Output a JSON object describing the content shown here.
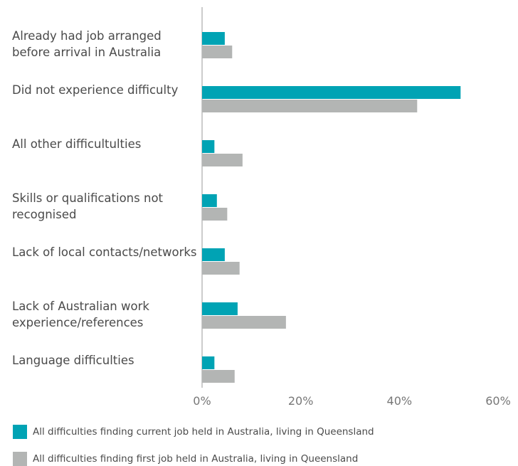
{
  "chart_data": {
    "type": "bar",
    "orientation": "horizontal",
    "categories": [
      "Already had job arranged before arrival in Australia",
      "Did not experience difficulty",
      "All other difficultulties",
      "Skills or qualifications not recognised",
      "Lack of local contacts/networks",
      "Lack of Australian work experience/references",
      "Language difficulties"
    ],
    "series": [
      {
        "name": "All difficulties finding current job held in Australia, living in Queensland",
        "color": "#00a3b4",
        "values": [
          4.6,
          52.4,
          2.5,
          3.0,
          4.6,
          7.2,
          2.5
        ]
      },
      {
        "name": "All difficulties finding first job held in Australia, living in Queensland",
        "color": "#b3b5b4",
        "values": [
          6.1,
          43.6,
          8.2,
          5.1,
          7.6,
          17.0,
          6.6
        ]
      }
    ],
    "xlim": [
      0,
      60
    ],
    "xticks": [
      {
        "value": 0,
        "label": "0%"
      },
      {
        "value": 20,
        "label": "20%"
      },
      {
        "value": 40,
        "label": "40%"
      },
      {
        "value": 60,
        "label": "60%"
      }
    ],
    "legend": "bottom"
  }
}
